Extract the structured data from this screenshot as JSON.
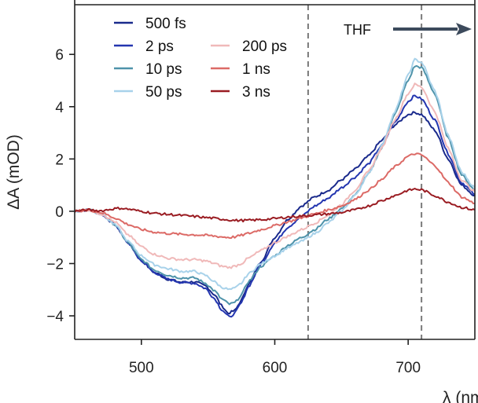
{
  "chart_data": {
    "type": "line",
    "title": "",
    "xlabel": "λ (nm)",
    "ylabel": "ΔA (mOD)",
    "xlim": [
      450,
      750
    ],
    "ylim": [
      -4.9,
      7.9
    ],
    "xticks": [
      500,
      600,
      700
    ],
    "yticks": [
      -4,
      -2,
      0,
      2,
      4,
      6
    ],
    "ytick_labels": [
      "−4",
      "−2",
      "0",
      "2",
      "4",
      "6"
    ],
    "grid": false,
    "legend": "top-left",
    "vlines": [
      625,
      710
    ],
    "annotation": {
      "text": "THF",
      "arrow": "right"
    },
    "series": [
      {
        "name": "500 fs",
        "color": "#1a2a8c",
        "points": [
          [
            450,
            0
          ],
          [
            460,
            0.05
          ],
          [
            470,
            -0.1
          ],
          [
            480,
            -0.5
          ],
          [
            490,
            -1.2
          ],
          [
            500,
            -1.9
          ],
          [
            510,
            -2.35
          ],
          [
            520,
            -2.6
          ],
          [
            530,
            -2.72
          ],
          [
            540,
            -2.7
          ],
          [
            548,
            -2.85
          ],
          [
            555,
            -3.2
          ],
          [
            560,
            -3.6
          ],
          [
            565,
            -3.9
          ],
          [
            570,
            -3.8
          ],
          [
            575,
            -3.4
          ],
          [
            580,
            -2.8
          ],
          [
            590,
            -1.9
          ],
          [
            600,
            -1.0
          ],
          [
            610,
            -0.3
          ],
          [
            620,
            0.2
          ],
          [
            630,
            0.55
          ],
          [
            640,
            0.8
          ],
          [
            650,
            1.2
          ],
          [
            660,
            1.6
          ],
          [
            670,
            2.1
          ],
          [
            680,
            2.7
          ],
          [
            690,
            3.3
          ],
          [
            700,
            3.7
          ],
          [
            705,
            3.78
          ],
          [
            710,
            3.7
          ],
          [
            720,
            3.1
          ],
          [
            730,
            2.0
          ],
          [
            740,
            1.0
          ],
          [
            750,
            0.6
          ]
        ]
      },
      {
        "name": "2 ps",
        "color": "#2436b0",
        "points": [
          [
            450,
            0
          ],
          [
            460,
            0.05
          ],
          [
            470,
            -0.1
          ],
          [
            480,
            -0.5
          ],
          [
            490,
            -1.2
          ],
          [
            500,
            -1.9
          ],
          [
            510,
            -2.35
          ],
          [
            520,
            -2.6
          ],
          [
            530,
            -2.72
          ],
          [
            540,
            -2.75
          ],
          [
            548,
            -2.95
          ],
          [
            555,
            -3.35
          ],
          [
            560,
            -3.75
          ],
          [
            566,
            -4.05
          ],
          [
            570,
            -3.9
          ],
          [
            575,
            -3.5
          ],
          [
            580,
            -2.9
          ],
          [
            590,
            -2.0
          ],
          [
            600,
            -1.2
          ],
          [
            610,
            -0.6
          ],
          [
            620,
            -0.2
          ],
          [
            630,
            0.2
          ],
          [
            640,
            0.5
          ],
          [
            650,
            0.9
          ],
          [
            660,
            1.3
          ],
          [
            670,
            1.8
          ],
          [
            680,
            2.5
          ],
          [
            690,
            3.4
          ],
          [
            700,
            4.2
          ],
          [
            705,
            4.42
          ],
          [
            710,
            4.3
          ],
          [
            720,
            3.5
          ],
          [
            730,
            2.2
          ],
          [
            740,
            1.1
          ],
          [
            750,
            0.65
          ]
        ]
      },
      {
        "name": "10 ps",
        "color": "#4e93aa",
        "points": [
          [
            450,
            0
          ],
          [
            460,
            0.05
          ],
          [
            470,
            -0.1
          ],
          [
            480,
            -0.5
          ],
          [
            490,
            -1.2
          ],
          [
            500,
            -1.85
          ],
          [
            510,
            -2.25
          ],
          [
            520,
            -2.45
          ],
          [
            530,
            -2.55
          ],
          [
            540,
            -2.55
          ],
          [
            548,
            -2.75
          ],
          [
            555,
            -3.05
          ],
          [
            560,
            -3.35
          ],
          [
            566,
            -3.55
          ],
          [
            570,
            -3.5
          ],
          [
            575,
            -3.2
          ],
          [
            580,
            -2.7
          ],
          [
            590,
            -2.1
          ],
          [
            600,
            -1.7
          ],
          [
            610,
            -1.3
          ],
          [
            620,
            -1.0
          ],
          [
            630,
            -0.7
          ],
          [
            640,
            -0.3
          ],
          [
            650,
            0.1
          ],
          [
            660,
            0.6
          ],
          [
            670,
            1.4
          ],
          [
            680,
            2.4
          ],
          [
            690,
            3.7
          ],
          [
            700,
            5.0
          ],
          [
            705,
            5.55
          ],
          [
            710,
            5.5
          ],
          [
            720,
            4.5
          ],
          [
            730,
            2.8
          ],
          [
            740,
            1.4
          ],
          [
            750,
            0.8
          ]
        ]
      },
      {
        "name": "50 ps",
        "color": "#a8d2ea",
        "points": [
          [
            450,
            0
          ],
          [
            460,
            0.05
          ],
          [
            470,
            -0.1
          ],
          [
            480,
            -0.5
          ],
          [
            490,
            -1.15
          ],
          [
            500,
            -1.7
          ],
          [
            510,
            -2.05
          ],
          [
            520,
            -2.2
          ],
          [
            530,
            -2.3
          ],
          [
            540,
            -2.3
          ],
          [
            548,
            -2.45
          ],
          [
            555,
            -2.7
          ],
          [
            560,
            -2.9
          ],
          [
            566,
            -3.0
          ],
          [
            570,
            -2.95
          ],
          [
            575,
            -2.75
          ],
          [
            580,
            -2.4
          ],
          [
            590,
            -2.0
          ],
          [
            600,
            -1.7
          ],
          [
            610,
            -1.4
          ],
          [
            620,
            -1.15
          ],
          [
            630,
            -0.85
          ],
          [
            640,
            -0.45
          ],
          [
            650,
            0.0
          ],
          [
            660,
            0.6
          ],
          [
            670,
            1.4
          ],
          [
            680,
            2.5
          ],
          [
            690,
            3.8
          ],
          [
            700,
            5.2
          ],
          [
            705,
            5.8
          ],
          [
            710,
            5.7
          ],
          [
            720,
            4.6
          ],
          [
            730,
            2.9
          ],
          [
            740,
            1.5
          ],
          [
            750,
            0.9
          ]
        ]
      },
      {
        "name": "200 ps",
        "color": "#f0b9b9",
        "points": [
          [
            450,
            0
          ],
          [
            460,
            0.05
          ],
          [
            470,
            -0.1
          ],
          [
            480,
            -0.4
          ],
          [
            490,
            -0.9
          ],
          [
            500,
            -1.35
          ],
          [
            510,
            -1.65
          ],
          [
            520,
            -1.8
          ],
          [
            530,
            -1.85
          ],
          [
            540,
            -1.85
          ],
          [
            548,
            -1.9
          ],
          [
            555,
            -2.0
          ],
          [
            560,
            -2.1
          ],
          [
            566,
            -2.15
          ],
          [
            570,
            -2.1
          ],
          [
            575,
            -2.0
          ],
          [
            580,
            -1.8
          ],
          [
            590,
            -1.5
          ],
          [
            600,
            -1.2
          ],
          [
            610,
            -0.95
          ],
          [
            620,
            -0.7
          ],
          [
            630,
            -0.45
          ],
          [
            640,
            -0.15
          ],
          [
            650,
            0.25
          ],
          [
            660,
            0.8
          ],
          [
            670,
            1.5
          ],
          [
            680,
            2.4
          ],
          [
            690,
            3.5
          ],
          [
            700,
            4.5
          ],
          [
            705,
            4.85
          ],
          [
            710,
            4.75
          ],
          [
            720,
            3.8
          ],
          [
            730,
            2.4
          ],
          [
            740,
            1.2
          ],
          [
            750,
            0.75
          ]
        ]
      },
      {
        "name": "1 ns",
        "color": "#dc6a66",
        "points": [
          [
            450,
            0
          ],
          [
            460,
            0.05
          ],
          [
            470,
            -0.05
          ],
          [
            480,
            -0.25
          ],
          [
            490,
            -0.5
          ],
          [
            500,
            -0.7
          ],
          [
            510,
            -0.8
          ],
          [
            520,
            -0.85
          ],
          [
            530,
            -0.88
          ],
          [
            540,
            -0.9
          ],
          [
            548,
            -0.92
          ],
          [
            555,
            -0.95
          ],
          [
            560,
            -0.98
          ],
          [
            566,
            -1.0
          ],
          [
            570,
            -0.98
          ],
          [
            575,
            -0.92
          ],
          [
            580,
            -0.85
          ],
          [
            590,
            -0.7
          ],
          [
            600,
            -0.55
          ],
          [
            610,
            -0.4
          ],
          [
            620,
            -0.25
          ],
          [
            630,
            -0.1
          ],
          [
            640,
            0.05
          ],
          [
            650,
            0.2
          ],
          [
            660,
            0.45
          ],
          [
            670,
            0.8
          ],
          [
            680,
            1.2
          ],
          [
            690,
            1.7
          ],
          [
            700,
            2.1
          ],
          [
            705,
            2.2
          ],
          [
            710,
            2.15
          ],
          [
            720,
            1.75
          ],
          [
            730,
            1.1
          ],
          [
            740,
            0.55
          ],
          [
            750,
            0.3
          ]
        ]
      },
      {
        "name": "3 ns",
        "color": "#9a1c22",
        "points": [
          [
            450,
            0
          ],
          [
            460,
            0.05
          ],
          [
            470,
            0.02
          ],
          [
            480,
            0.1
          ],
          [
            485,
            0.12
          ],
          [
            490,
            0.08
          ],
          [
            500,
            0.0
          ],
          [
            510,
            -0.08
          ],
          [
            520,
            -0.12
          ],
          [
            530,
            -0.16
          ],
          [
            540,
            -0.2
          ],
          [
            550,
            -0.25
          ],
          [
            560,
            -0.3
          ],
          [
            570,
            -0.35
          ],
          [
            580,
            -0.35
          ],
          [
            590,
            -0.32
          ],
          [
            600,
            -0.28
          ],
          [
            610,
            -0.22
          ],
          [
            620,
            -0.18
          ],
          [
            630,
            -0.14
          ],
          [
            640,
            -0.1
          ],
          [
            650,
            -0.05
          ],
          [
            660,
            0.05
          ],
          [
            670,
            0.2
          ],
          [
            680,
            0.4
          ],
          [
            690,
            0.6
          ],
          [
            700,
            0.8
          ],
          [
            705,
            0.85
          ],
          [
            710,
            0.82
          ],
          [
            720,
            0.6
          ],
          [
            730,
            0.35
          ],
          [
            740,
            0.15
          ],
          [
            750,
            0.05
          ]
        ]
      }
    ]
  }
}
